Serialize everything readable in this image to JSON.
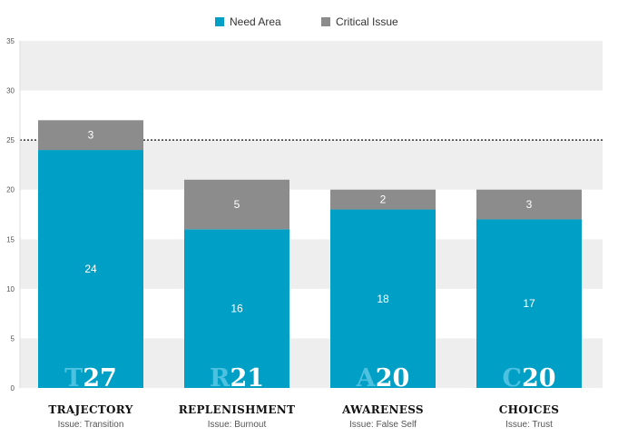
{
  "colors": {
    "need_area": "#00a0c6",
    "critical_issue": "#8c8c8c",
    "band": "#eeeeee",
    "threshold": "#333333",
    "score_letter": "#4fc1e0"
  },
  "chart_data": {
    "type": "bar",
    "stacked": true,
    "ylim": [
      0,
      35
    ],
    "yticks": [
      0,
      5,
      10,
      15,
      20,
      25,
      30,
      35
    ],
    "threshold": 25,
    "grid": "alternating-bands",
    "legend_position": "top-center",
    "legend": [
      {
        "label": "Need Area",
        "color": "#00a0c6"
      },
      {
        "label": "Critical Issue",
        "color": "#8c8c8c"
      }
    ],
    "categories": [
      "TRAJECTORY",
      "REPLENISHMENT",
      "AWARENESS",
      "CHOICES"
    ],
    "series": [
      {
        "name": "Need Area",
        "values": [
          24,
          16,
          18,
          17
        ]
      },
      {
        "name": "Critical Issue",
        "values": [
          3,
          5,
          2,
          3
        ]
      }
    ],
    "score_letters": [
      "T",
      "R",
      "A",
      "C"
    ],
    "score_totals": [
      "27",
      "21",
      "20",
      "20"
    ],
    "issues": [
      "Issue: Transition",
      "Issue: Burnout",
      "Issue: False Self",
      "Issue: Trust"
    ]
  }
}
